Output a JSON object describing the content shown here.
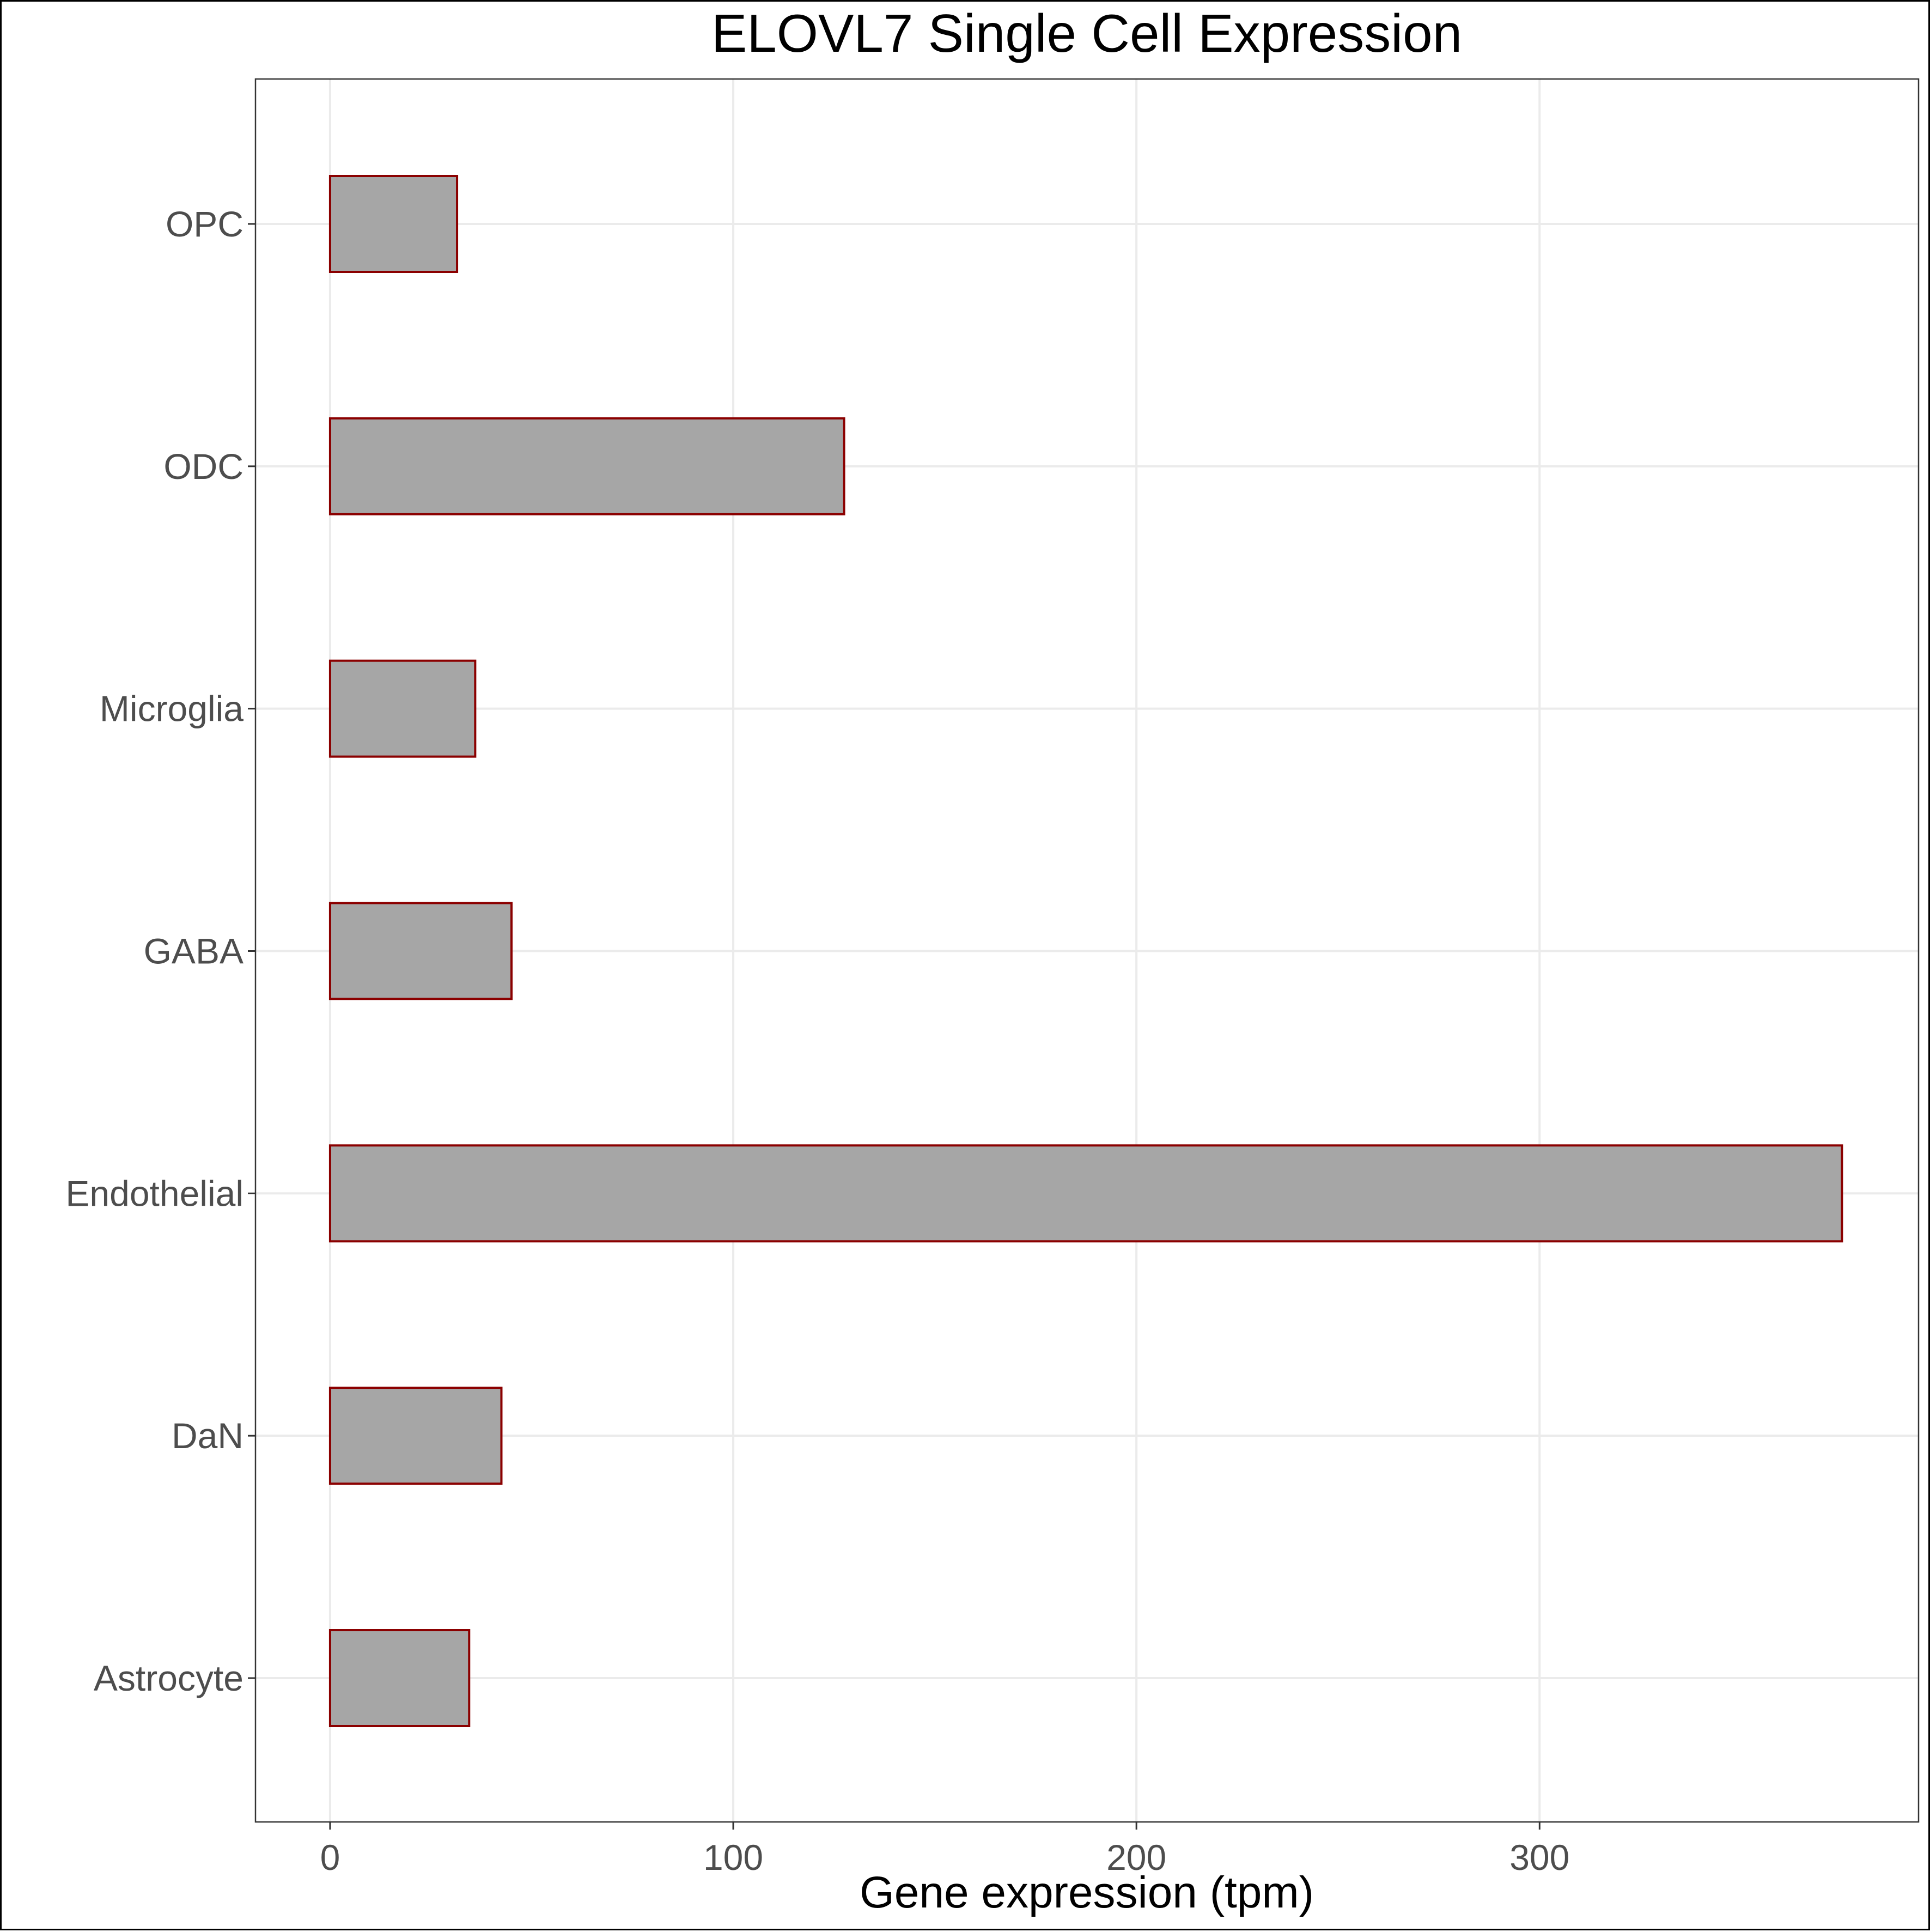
{
  "chart_data": {
    "type": "bar",
    "orientation": "horizontal",
    "title": "ELOVL7 Single Cell Expression",
    "xlabel": "Gene expression (tpm)",
    "ylabel": "",
    "categories": [
      "Astrocyte",
      "DaN",
      "Endothelial",
      "GABA",
      "Microglia",
      "ODC",
      "OPC"
    ],
    "values": [
      34.5,
      42.5,
      375,
      45,
      36,
      127.5,
      31.5
    ],
    "xlim": [
      -18.5,
      394
    ],
    "xticks": [
      0,
      100,
      200,
      300
    ],
    "grid": true,
    "legend": "none",
    "colors": {
      "bar_fill": "#a6a6a6",
      "bar_stroke": "#8b0000",
      "grid": "#ebebeb",
      "panel_border": "#333333"
    }
  }
}
